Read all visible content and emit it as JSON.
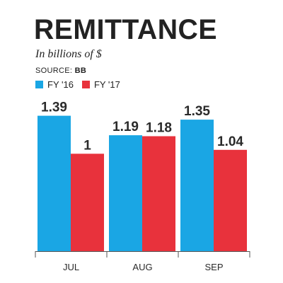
{
  "header": {
    "title": "REMITTANCE",
    "subtitle": "In billions of $",
    "source_label": "SOURCE:",
    "source_value": "BB"
  },
  "colors": {
    "fy16": "#1aa6e4",
    "fy17": "#e8323c",
    "axis": "#555555",
    "text": "#2a2a2a"
  },
  "chart_data": {
    "type": "bar",
    "title": "REMITTANCE",
    "subtitle": "In billions of $",
    "categories": [
      "JUL",
      "AUG",
      "SEP"
    ],
    "series": [
      {
        "name": "FY '16",
        "values": [
          1.39,
          1.19,
          1.35
        ]
      },
      {
        "name": "FY '17",
        "values": [
          1,
          1.18,
          1.04
        ]
      }
    ],
    "value_labels": [
      [
        "1.39",
        "1.19",
        "1.35"
      ],
      [
        "1",
        "1.18",
        "1.04"
      ]
    ],
    "xlabel": "",
    "ylabel": "",
    "ylim": [
      0,
      1.45
    ],
    "grid": false,
    "legend": "top-left"
  }
}
